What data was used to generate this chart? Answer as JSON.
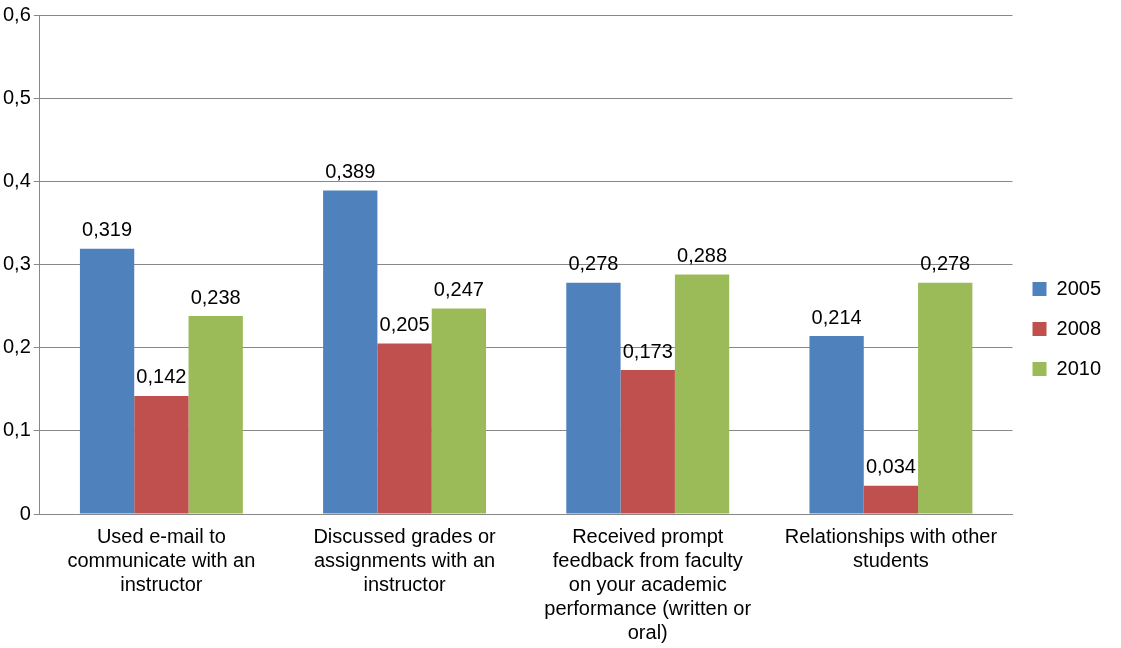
{
  "chart_data": {
    "type": "bar",
    "categories": [
      "Used e-mail to communicate with an instructor",
      "Discussed grades or assignments with an instructor",
      "Received prompt feedback from faculty on your academic performance (written or oral)",
      "Relationships with other students"
    ],
    "series": [
      {
        "name": "2005",
        "color": "#4f81bd",
        "values": [
          0.319,
          0.389,
          0.278,
          0.214
        ],
        "value_labels": [
          "0,319",
          "0,389",
          "0,278",
          "0,214"
        ]
      },
      {
        "name": "2008",
        "color": "#c0504d",
        "values": [
          0.142,
          0.205,
          0.173,
          0.034
        ],
        "value_labels": [
          "0,142",
          "0,205",
          "0,173",
          "0,034"
        ]
      },
      {
        "name": "2010",
        "color": "#9bbb59",
        "values": [
          0.238,
          0.247,
          0.288,
          0.278
        ],
        "value_labels": [
          "0,238",
          "0,247",
          "0,288",
          "0,278"
        ]
      }
    ],
    "ylim": [
      0,
      0.6
    ],
    "yticks": [
      0,
      {
        "value": 0.1,
        "label": "0,1"
      },
      {
        "value": 0.2,
        "label": "0,2"
      },
      {
        "value": 0.3,
        "label": "0,3"
      },
      {
        "value": 0.4,
        "label": "0,4"
      },
      {
        "value": 0.5,
        "label": "0,5"
      },
      {
        "value": 0.6,
        "label": "0,6"
      }
    ],
    "grid": "y",
    "legend": "right"
  }
}
